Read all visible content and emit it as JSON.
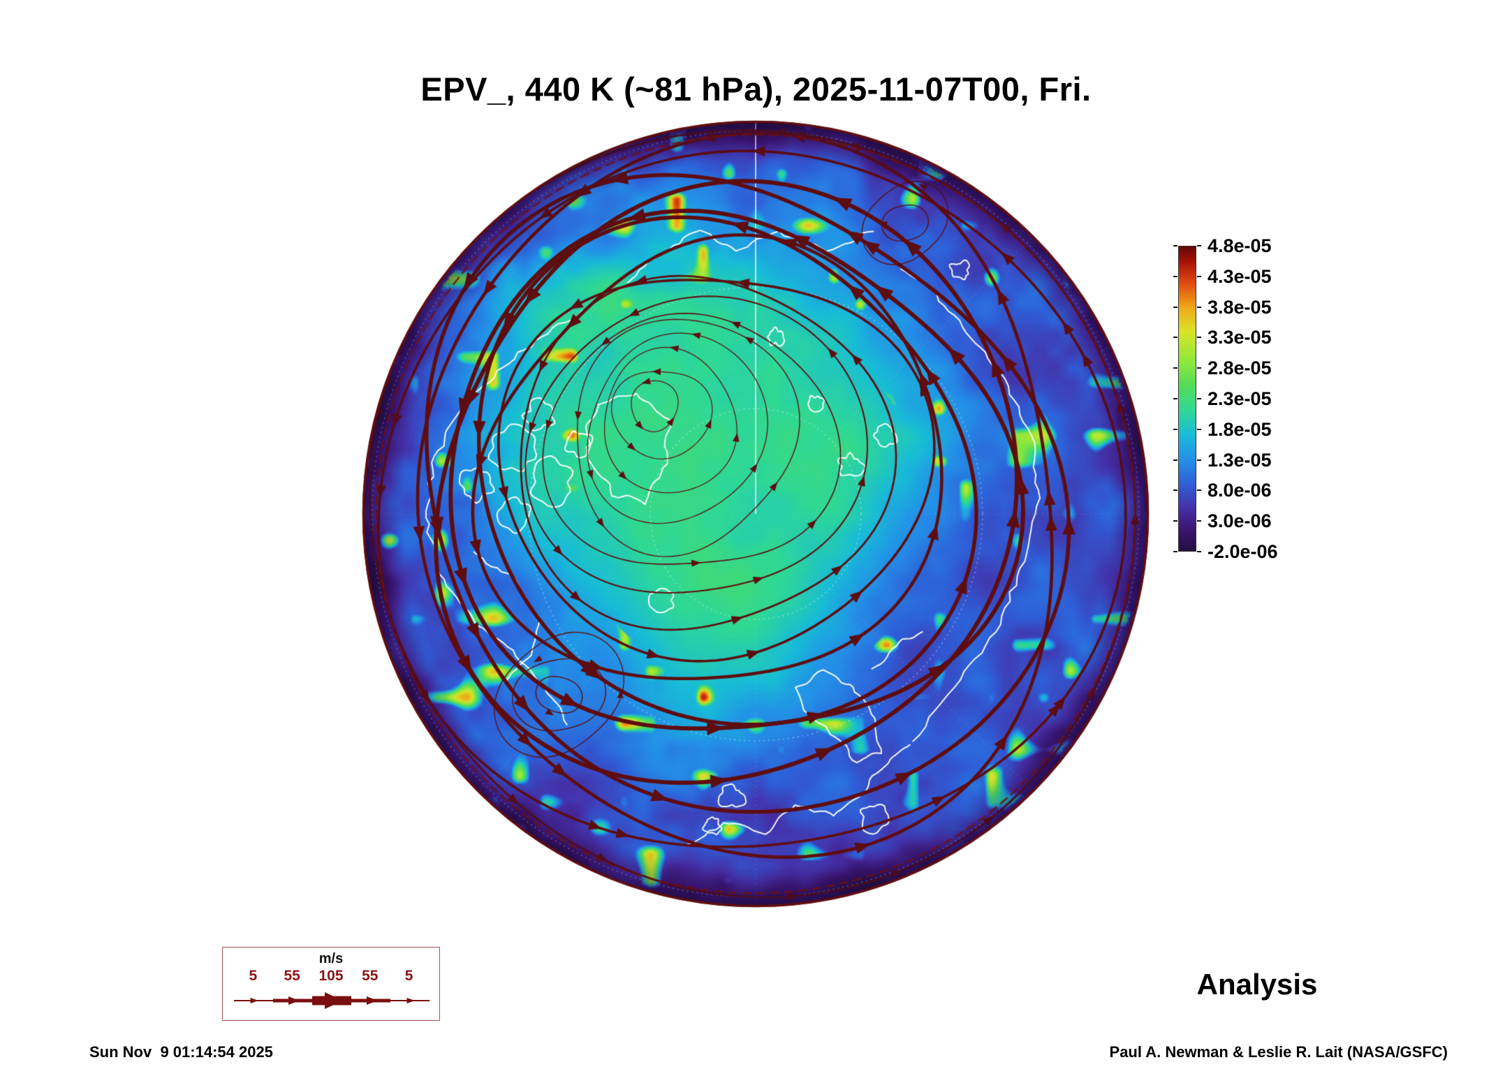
{
  "title": "EPV_, 440 K (~81 hPa), 2025-11-07T00, Fri.",
  "analysis_label": "Analysis",
  "footer": {
    "generated": "Sun Nov  9 01:14:54 2025",
    "credit": "Paul A. Newman & Leslie R. Lait (NASA/GSFC)"
  },
  "wind_legend": {
    "unit_label": "m/s",
    "tick_labels": [
      "5",
      "55",
      "105",
      "55",
      "5"
    ]
  },
  "colorbar": {
    "tick_labels": [
      "4.8e-05",
      "4.3e-05",
      "3.8e-05",
      "3.3e-05",
      "2.8e-05",
      "2.3e-05",
      "1.8e-05",
      "1.3e-05",
      "8.0e-06",
      "3.0e-06",
      "-2.0e-06"
    ],
    "stops": [
      {
        "t": 0.0,
        "c": "#241040"
      },
      {
        "t": 0.07,
        "c": "#3a1470"
      },
      {
        "t": 0.14,
        "c": "#4630a8"
      },
      {
        "t": 0.22,
        "c": "#2f5fd8"
      },
      {
        "t": 0.3,
        "c": "#2490e8"
      },
      {
        "t": 0.38,
        "c": "#18bcd8"
      },
      {
        "t": 0.46,
        "c": "#2ed898"
      },
      {
        "t": 0.54,
        "c": "#52dc5a"
      },
      {
        "t": 0.62,
        "c": "#8ce83c"
      },
      {
        "t": 0.72,
        "c": "#d8e428"
      },
      {
        "t": 0.8,
        "c": "#f0a818"
      },
      {
        "t": 0.88,
        "c": "#e04810"
      },
      {
        "t": 0.95,
        "c": "#a81208"
      },
      {
        "t": 1.0,
        "c": "#600808"
      }
    ]
  },
  "chart_data": {
    "type": "heatmap",
    "title": "EPV_, 440 K (~81 hPa), 2025-11-07T00, Fri.",
    "variable": "EPV_",
    "level": "440 K (~81 hPa)",
    "valid_time": "2025-11-07T00, Fri.",
    "product": "Analysis",
    "colorbar_ticks": [
      4.8e-05,
      4.3e-05,
      3.8e-05,
      3.3e-05,
      2.8e-05,
      2.3e-05,
      1.8e-05,
      1.3e-05,
      8e-06,
      3e-06,
      -2e-06
    ],
    "value_range": [
      -2e-06,
      4.8e-05
    ],
    "wind_scale_ms": [
      5,
      55,
      105,
      55,
      5
    ],
    "projection": "north-pole-centered circular (polar) view with white coastlines",
    "overlay": "dark-red wind streamlines with arrowheads; counterclockwise circumpolar flow, thickest jet band in the outer mid-radius",
    "field_pattern": {
      "vortex_interior": {
        "approx_value": 2e-05,
        "color": "green",
        "extent": "broad region offset from the pole"
      },
      "vortex_center_offset": [
        -0.3,
        -0.32
      ],
      "midlatitudes": {
        "approx_value": 9e-06,
        "color": "blue/cyan band"
      },
      "map_edge": {
        "approx_value": 1e-06,
        "color": "dark purple rim"
      },
      "small_scale": "filamentary mottling of about plus/minus 6e-06 with sparse warm yellow/red flecks toward the edge"
    },
    "graticule": {
      "latitude_circles_r": [
        0.268,
        0.577
      ],
      "prime_meridian_line": "white line from top edge to pole"
    },
    "style": {
      "streamline_color": "#5e0d10",
      "coastline_color": "#ffffff",
      "background": "#ffffff"
    }
  }
}
